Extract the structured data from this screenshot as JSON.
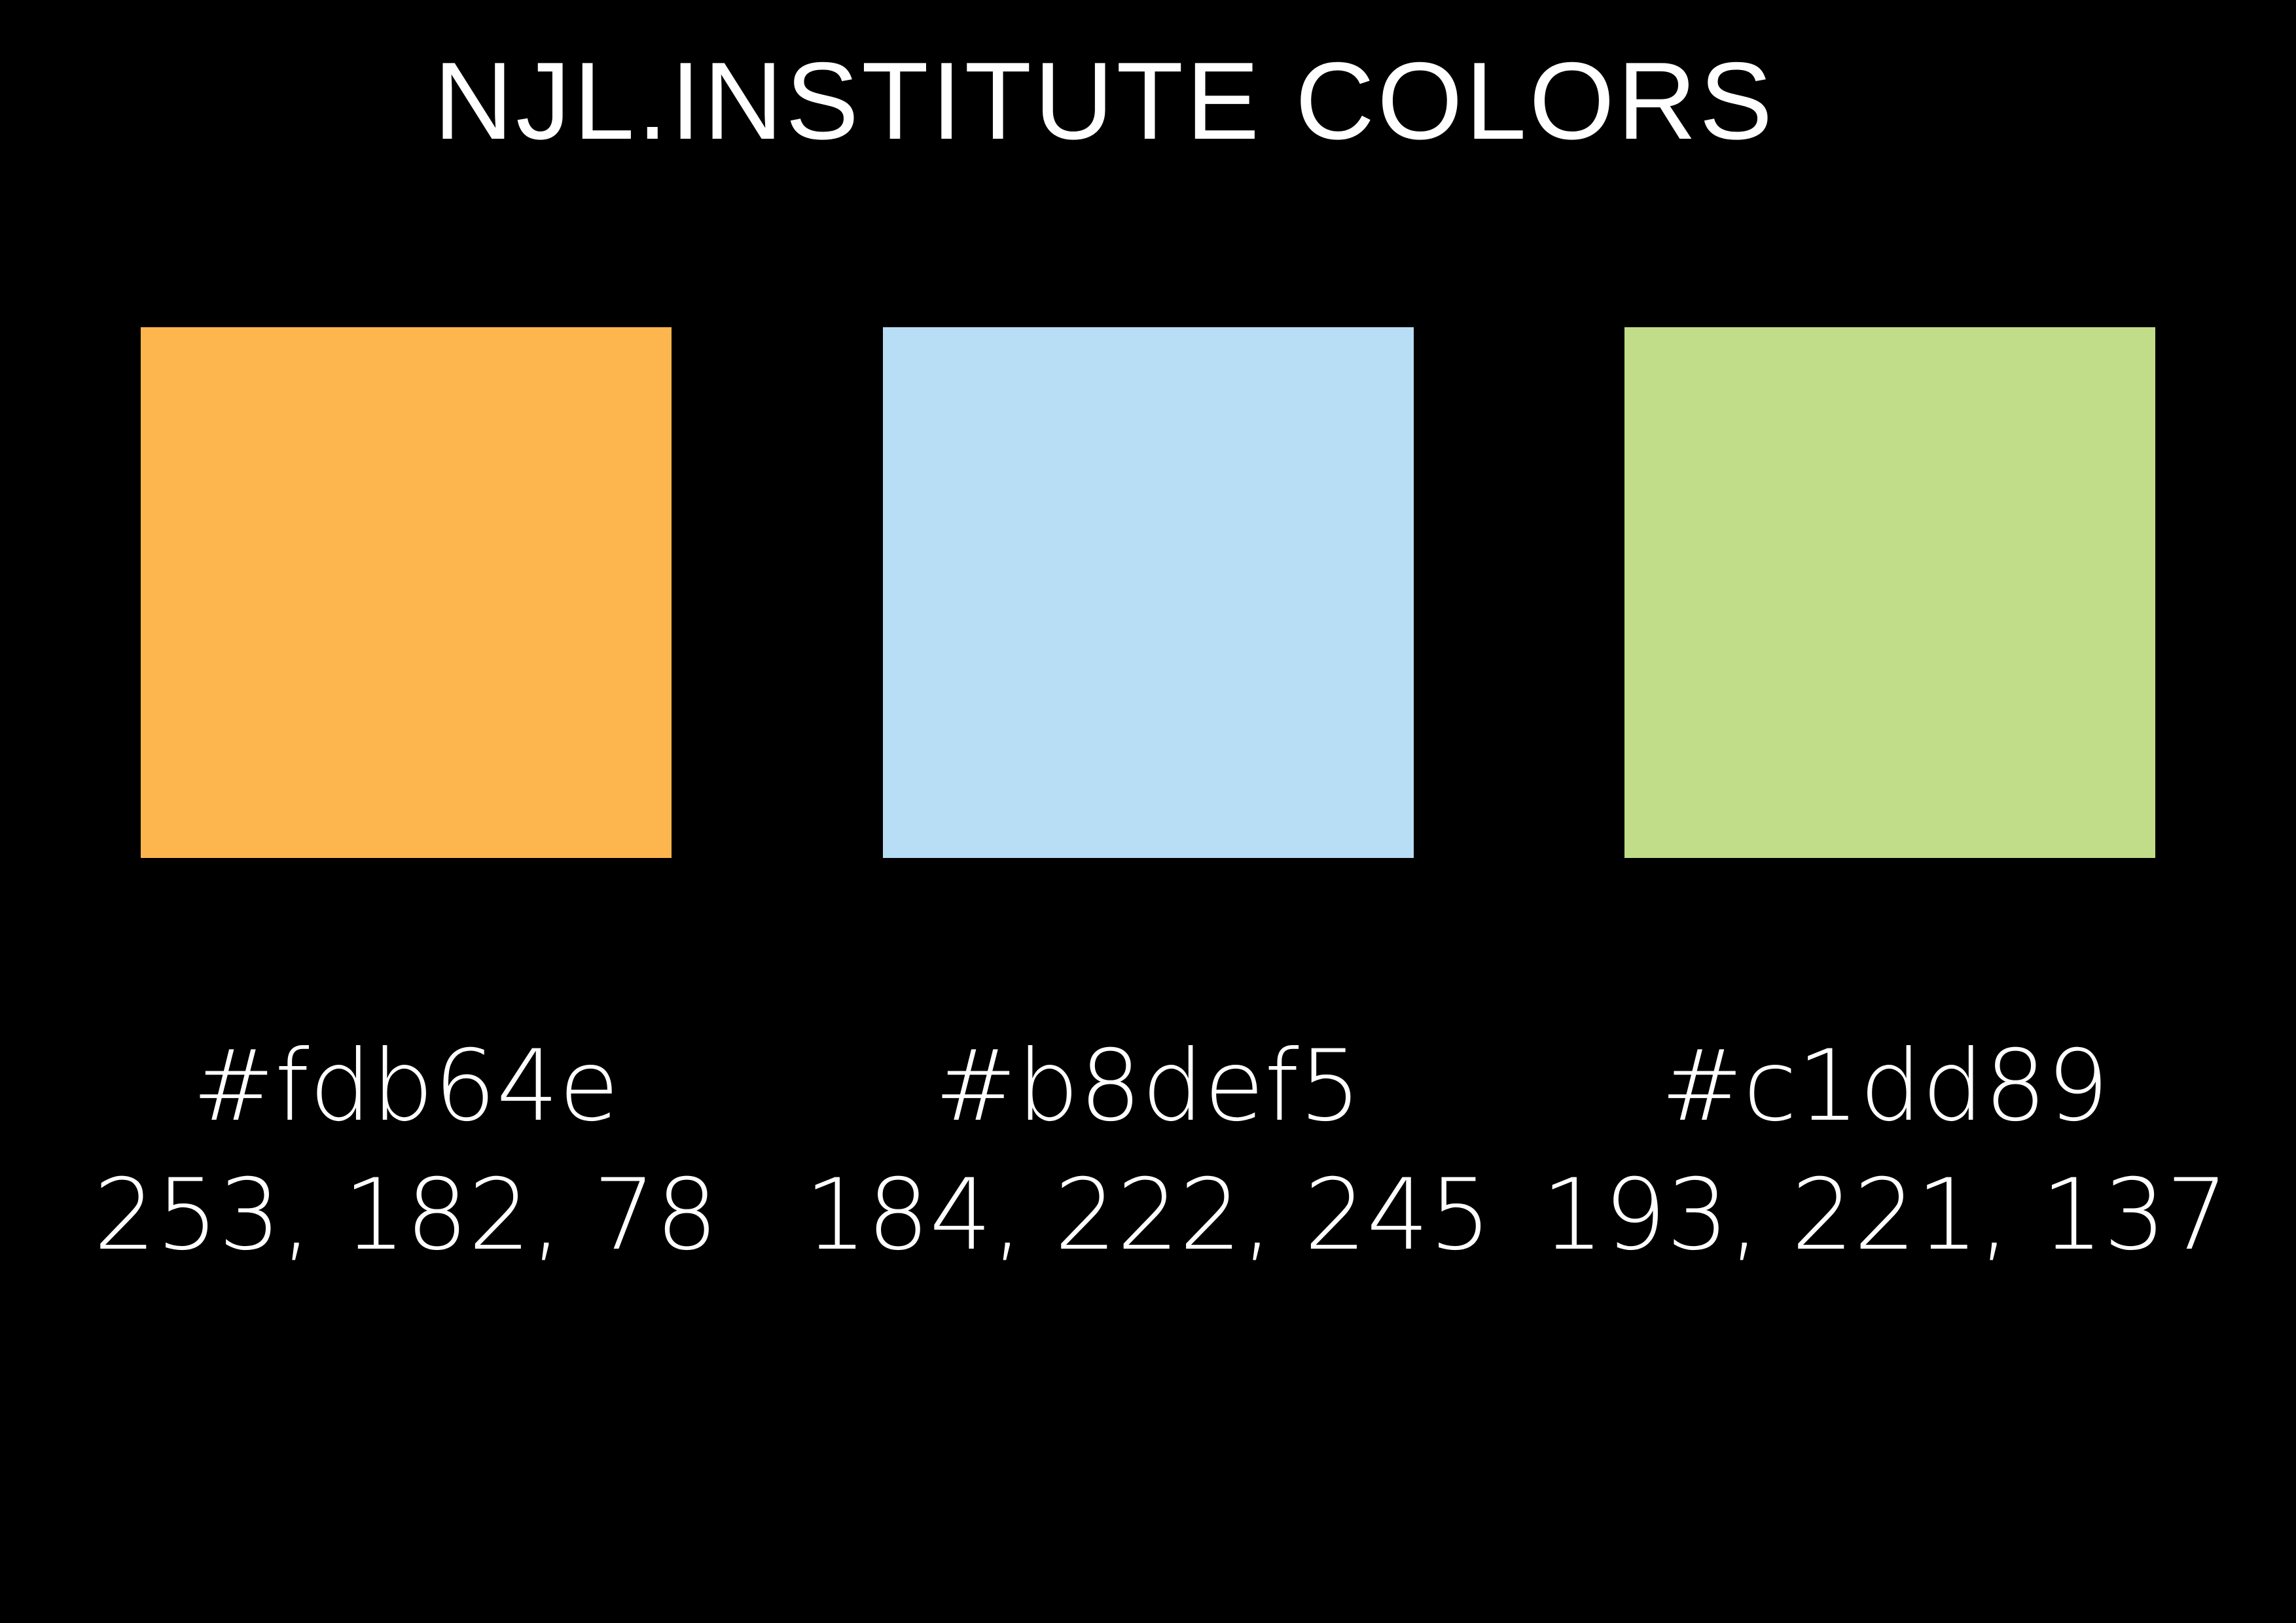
{
  "title": "NJL.INSTITUTE COLORS",
  "swatches": [
    {
      "hex": "#fdb64e",
      "rgb": "253, 182, 78",
      "color": "#fdb64e"
    },
    {
      "hex": "#b8def5",
      "rgb": "184, 222, 245",
      "color": "#b8def5"
    },
    {
      "hex": "#c1dd89",
      "rgb": "193, 221, 137",
      "color": "#c1dd89"
    }
  ],
  "background": "#000000",
  "text_color": "#ffffff"
}
